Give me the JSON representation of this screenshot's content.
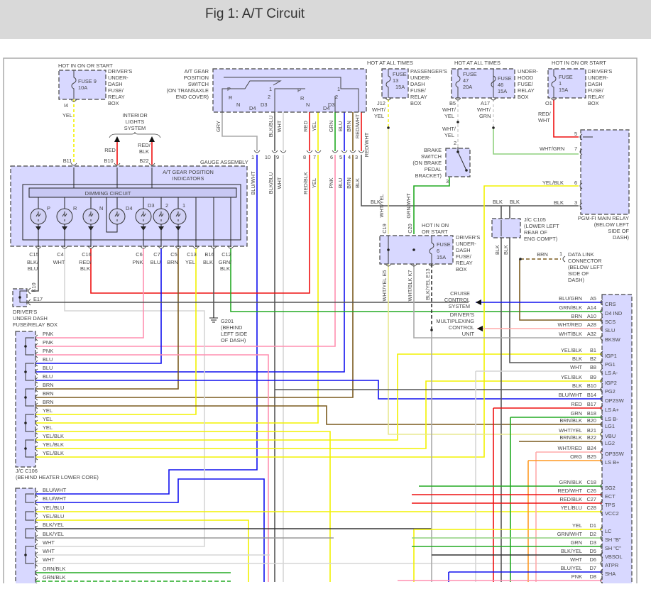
{
  "title": "Fig 1: A/T Circuit",
  "colors": {
    "PNK": "#ff8fb0",
    "BLU": "#1010ee",
    "BRN": "#7a5a1e",
    "YEL": "#f2f200",
    "BLK": "#555555",
    "WHT": "#d6d6d6",
    "RED": "#ee1111",
    "GRN": "#22aa22",
    "LGRN": "#8fd07f",
    "ORG": "#ff9922",
    "GRY": "#aaaaaa",
    "box": "#d8d8ff"
  },
  "fuse9": {
    "hot": "HOT IN ON OR START",
    "name": "FUSE 9",
    "amp": "10A",
    "box": [
      "DRIVER'S",
      "UNDER-",
      "DASH",
      "FUSE/",
      "RELAY",
      "BOX"
    ],
    "pin": "I4",
    "wire": "YEL"
  },
  "interior": {
    "label": [
      "INTERIOR",
      "LIGHTS",
      "SYSTEM"
    ],
    "wire_b10": "RED",
    "wire_b22": [
      "RED/",
      "BLK"
    ],
    "pins": [
      "B11",
      "B10",
      "B22"
    ]
  },
  "gauge": {
    "title": "GAUGE ASSEMBLY",
    "indicators": [
      "A/T GEAR POSITION",
      "INDICATORS"
    ],
    "dimming": "DIMMING CIRCUIT",
    "bulbs": [
      "P",
      "R",
      "N",
      "D4",
      "D3",
      "2",
      "1"
    ],
    "pins": [
      "C15",
      "C4",
      "C16",
      "C6",
      "C7",
      "C5",
      "C13",
      "B16",
      "C12"
    ],
    "wires": [
      [
        "BLK/",
        "BLU"
      ],
      [
        "WHT",
        ""
      ],
      [
        "RED/",
        "BLK"
      ],
      [
        "PNK",
        ""
      ],
      [
        "BLU",
        ""
      ],
      [
        "BRN",
        ""
      ],
      [
        "YEL",
        ""
      ],
      [
        "BLK",
        ""
      ],
      [
        "GRN/",
        "BLK"
      ]
    ]
  },
  "switch": {
    "label": [
      "A/T GEAR",
      "POSITION",
      "SWITCH",
      "(ON TRANSAXLE",
      "END COVER)"
    ],
    "positions_left": [
      "P",
      "R",
      "N",
      "D4",
      "D3",
      "1",
      "2"
    ],
    "positions_right": [
      "P",
      "R",
      "N",
      "D4",
      "D3",
      "1",
      "2"
    ],
    "wires_top": [
      "GRY",
      "BLK/BLU",
      "WHT",
      "RED",
      "YEL",
      "GRN",
      "BLU",
      "BRN",
      "RED/WHT"
    ],
    "pins": [
      "1",
      "10",
      "9",
      "8",
      "7",
      "6",
      "5",
      "4",
      "3"
    ],
    "wires_bottom": [
      "BLU/WHT",
      "BLK/BLU",
      "WHT",
      "RED/BLK",
      "YEL",
      "PNK",
      "BLU",
      "BRN",
      "BLK"
    ]
  },
  "fuse13": {
    "hot": "HOT AT ALL TIMES",
    "name": "FUSE",
    "num": "13",
    "amp": "15A",
    "box": [
      "PASSENGER'S",
      "UNDER-",
      "DASH",
      "FUSE/",
      "RELAY",
      "BOX"
    ],
    "pin": "J12",
    "wire": [
      "WHT/",
      "YEL"
    ]
  },
  "fuse47": {
    "hot": "HOT AT ALL TIMES",
    "f47": [
      "FUSE",
      "47",
      "20A"
    ],
    "f46": [
      "FUSE",
      "46",
      "15A"
    ],
    "box": [
      "UNDER-",
      "HOOD",
      "FUSE/",
      "RELAY",
      "BOX"
    ],
    "pin_b5": "B5",
    "wire_b5": [
      "WHT/",
      "YEL"
    ],
    "pin_a17": "A17",
    "wire_a17": [
      "WHT/",
      "GRN"
    ]
  },
  "fuse1": {
    "hot": "HOT IN ON OR START",
    "f": [
      "FUSE",
      "1",
      "15A"
    ],
    "box": [
      "DRIVER'S",
      "UNDER-",
      "DASH",
      "FUSE/",
      "RELAY",
      "BOX"
    ],
    "pin": "O1",
    "wire": [
      "RED/",
      "WHT"
    ]
  },
  "brake": {
    "label": [
      "BRAKE",
      "SWITCH",
      "(ON BRAKE",
      "PEDAL",
      "BRACKET)"
    ],
    "wire_in": [
      "WHT/",
      "YEL"
    ],
    "pin_in": "2",
    "pin_out": "3"
  },
  "relay": {
    "label": [
      "PGM-FI MAIN RELAY",
      "(BELOW LEFT",
      "SIDE OF",
      "DASH)"
    ],
    "pins": [
      "5",
      "7",
      "6",
      "3"
    ],
    "wires": [
      "WHT/GRN",
      "YEL/BLK",
      "BLK"
    ]
  },
  "jc105": {
    "label": [
      "J/C C105",
      "(LOWER LEFT",
      "REAR OF",
      "ENG COMPT)"
    ],
    "wires_in": [
      "BLK",
      "BLK"
    ],
    "wires_out": [
      "BLK",
      "BLK"
    ]
  },
  "fuse6": {
    "hot": [
      "HOT IN ON",
      "OR START"
    ],
    "f": [
      "FUSE",
      "6",
      "15A"
    ],
    "box": [
      "DRIVER'S",
      "UNDER-",
      "DASH",
      "FUSE/",
      "RELAY",
      "BOX"
    ],
    "pins_in": [
      "C19",
      "C20"
    ],
    "wire_c19": "WHT/YEL",
    "wire_c20": "GRN/WHT",
    "pins_out": [
      "E5",
      "K7",
      "E13"
    ],
    "wires_out": [
      "WHT/YEL",
      "WHT/BLK",
      "BLK/YEL"
    ]
  },
  "switch_side": {
    "red_wht": "RED/WHT",
    "blk": "BLK"
  },
  "dlc": {
    "wire": "BRN",
    "pin": "1",
    "label": [
      "DATA LINK",
      "CONNECTOR",
      "(BELOW LEFT",
      "SIDE OF",
      "DASH)"
    ]
  },
  "cruise": {
    "label": [
      "CRUISE",
      "CONTROL",
      "SYSTEM"
    ]
  },
  "mcu": {
    "label": [
      "DRIVER'S",
      "MULTIPLEXING",
      "CONTROL",
      "UNIT"
    ]
  },
  "dash_box": {
    "pins": [
      "K10",
      "E17"
    ],
    "label": [
      "DRIVER'S",
      "UNDER DASH",
      "FUSE/RELAY BOX"
    ]
  },
  "ground": {
    "label": [
      "G201",
      "(BEHIND",
      "LEFT SIDE",
      "OF DASH)"
    ]
  },
  "jc106": {
    "rows": [
      "PNK",
      "PNK",
      "PNK",
      "BLU",
      "BLU",
      "BLU",
      "BRN",
      "BRN",
      "BRN",
      "YEL",
      "YEL",
      "YEL",
      "YEL/BLK",
      "YEL/BLK",
      "YEL/BLK"
    ],
    "label": [
      "J/C C106",
      "(BEHIND HEATER LOWER CORE)"
    ]
  },
  "jc_lower": {
    "rows": [
      "BLU/WHT",
      "BLU/WHT",
      "YEL/BLU",
      "YEL/BLU",
      "BLK/YEL",
      "BLK/YEL",
      "WHT",
      "WHT",
      "WHT",
      "GRN/BLK",
      "GRN/BLK"
    ]
  },
  "ecm": {
    "pins": [
      {
        "wire": "BLU/GRN",
        "pin": "A5",
        "name": "CRS"
      },
      {
        "wire": "GRN/BLK",
        "pin": "A14",
        "name": "D4 IND"
      },
      {
        "wire": "BRN",
        "pin": "A10",
        "name": "SCS"
      },
      {
        "wire": "WHT/RED",
        "pin": "A28",
        "name": "SLU"
      },
      {
        "wire": "WHT/BLK",
        "pin": "A32",
        "name": "BKSW"
      },
      {
        "wire": "YEL/BLK",
        "pin": "B1",
        "name": "IGP1"
      },
      {
        "wire": "BLK",
        "pin": "B2",
        "name": "PG1"
      },
      {
        "wire": "WHT",
        "pin": "B8",
        "name": "LS A-"
      },
      {
        "wire": "YEL/BLK",
        "pin": "B9",
        "name": "IGP2"
      },
      {
        "wire": "BLK",
        "pin": "B10",
        "name": "PG2"
      },
      {
        "wire": "BLU/WHT",
        "pin": "B14",
        "name": "OP2SW"
      },
      {
        "wire": "RED",
        "pin": "B17",
        "name": "LS A+"
      },
      {
        "wire": "GRN",
        "pin": "B18",
        "name": "LS B-"
      },
      {
        "wire": "BRN/BLK",
        "pin": "B20",
        "name": "LG1"
      },
      {
        "wire": "WHT/YEL",
        "pin": "B21",
        "name": "VBU"
      },
      {
        "wire": "BRN/BLK",
        "pin": "B22",
        "name": "LG2"
      },
      {
        "wire": "WHT/RED",
        "pin": "B24",
        "name": "OP3SW"
      },
      {
        "wire": "ORG",
        "pin": "B25",
        "name": "LS B+"
      },
      {
        "wire": "GRN/BLK",
        "pin": "C18",
        "name": "SG2"
      },
      {
        "wire": "RED/WHT",
        "pin": "C26",
        "name": "ECT"
      },
      {
        "wire": "RED/BLK",
        "pin": "C27",
        "name": "TPS"
      },
      {
        "wire": "YEL/BLU",
        "pin": "C28",
        "name": "VCC2"
      },
      {
        "wire": "YEL",
        "pin": "D1",
        "name": "LC"
      },
      {
        "wire": "GRN/WHT",
        "pin": "D2",
        "name": "SH \"B\""
      },
      {
        "wire": "GRN",
        "pin": "D3",
        "name": "SH \"C\""
      },
      {
        "wire": "BLK/YEL",
        "pin": "D5",
        "name": "VBSOL"
      },
      {
        "wire": "WHT",
        "pin": "D6",
        "name": "ATPR"
      },
      {
        "wire": "BLU/YEL",
        "pin": "D7",
        "name": "SHA"
      },
      {
        "wire": "PNK",
        "pin": "D8",
        "name": ""
      }
    ]
  }
}
